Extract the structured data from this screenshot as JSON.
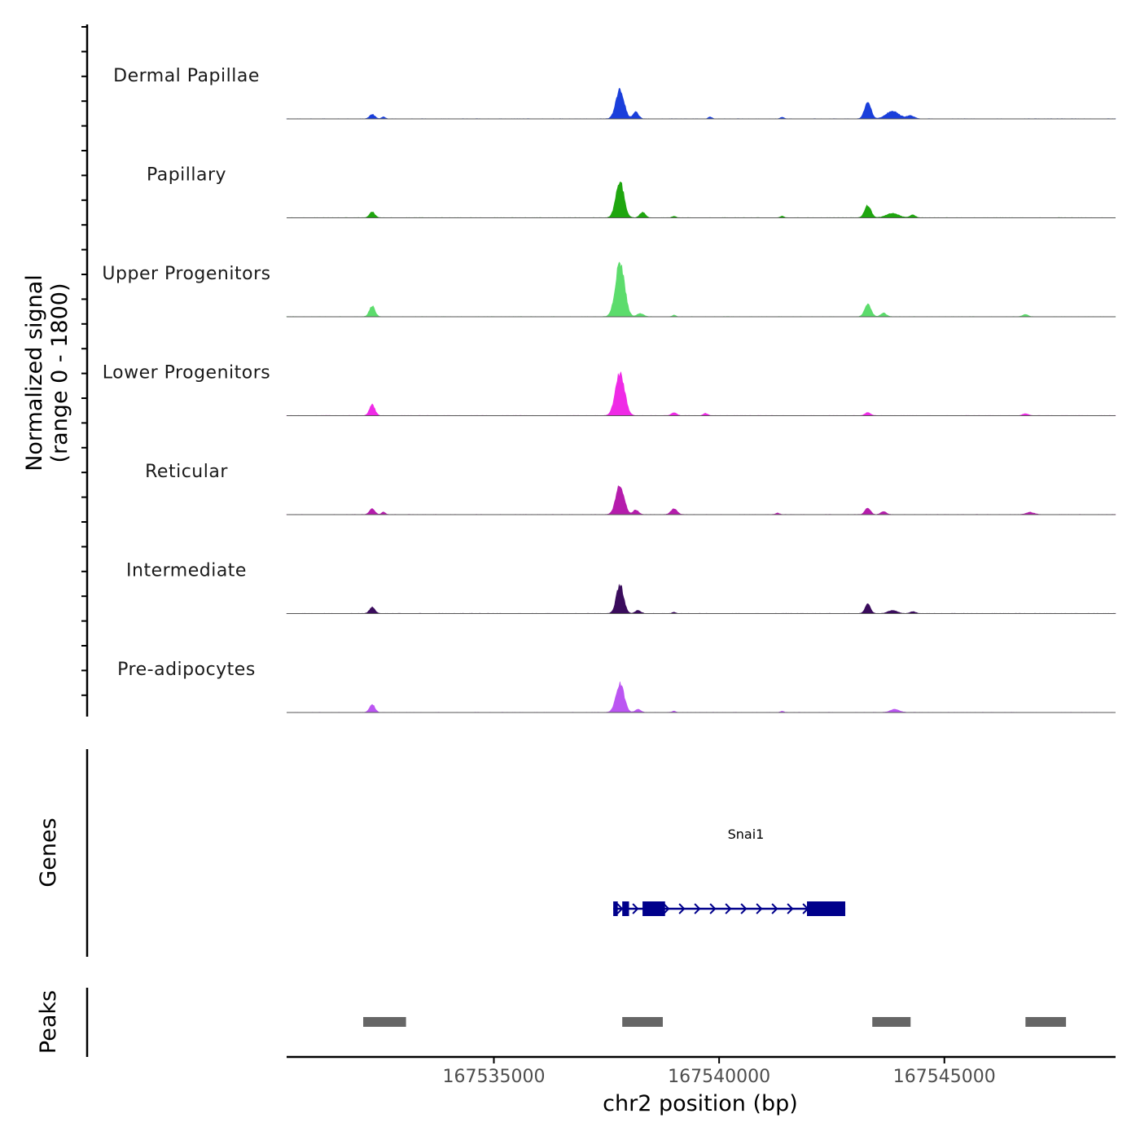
{
  "chart_data": {
    "type": "area",
    "title": "",
    "chromosome": "chr2",
    "xlabel": "chr2 position (bp)",
    "ylabel": "Normalized signal",
    "ylabel_range": "(range 0 - 1800)",
    "xlim": [
      167530400,
      167548800
    ],
    "xticks": [
      167535000,
      167540000,
      167545000
    ],
    "xtick_labels": [
      "167535000",
      "167540000",
      "167545000"
    ],
    "ylim": [
      0,
      1800
    ],
    "tracks": [
      {
        "name": "Dermal Papillae",
        "color": "#1a3fdb",
        "peaks": [
          [
            167532300,
            0.14,
            60
          ],
          [
            167532550,
            0.06,
            40
          ],
          [
            167537800,
            0.95,
            90
          ],
          [
            167538150,
            0.22,
            60
          ],
          [
            167543300,
            0.55,
            70
          ],
          [
            167543850,
            0.25,
            140
          ],
          [
            167544250,
            0.1,
            80
          ],
          [
            167539800,
            0.06,
            40
          ],
          [
            167541400,
            0.05,
            40
          ]
        ]
      },
      {
        "name": "Papillary",
        "color": "#1fa60f",
        "peaks": [
          [
            167532300,
            0.18,
            60
          ],
          [
            167537800,
            1.15,
            90
          ],
          [
            167538300,
            0.18,
            60
          ],
          [
            167543300,
            0.4,
            70
          ],
          [
            167543850,
            0.14,
            140
          ],
          [
            167544300,
            0.09,
            60
          ],
          [
            167539000,
            0.05,
            40
          ],
          [
            167541400,
            0.05,
            40
          ]
        ]
      },
      {
        "name": "Upper Progenitors",
        "color": "#5cdc6c",
        "peaks": [
          [
            167532300,
            0.35,
            60
          ],
          [
            167537800,
            1.75,
            100
          ],
          [
            167538250,
            0.1,
            70
          ],
          [
            167543300,
            0.4,
            70
          ],
          [
            167543650,
            0.12,
            60
          ],
          [
            167546800,
            0.07,
            60
          ],
          [
            167539000,
            0.05,
            40
          ]
        ]
      },
      {
        "name": "Lower Progenitors",
        "color": "#ef2ae6",
        "peaks": [
          [
            167532300,
            0.35,
            60
          ],
          [
            167537800,
            1.4,
            100
          ],
          [
            167539000,
            0.1,
            60
          ],
          [
            167539700,
            0.07,
            50
          ],
          [
            167543300,
            0.1,
            60
          ],
          [
            167546800,
            0.06,
            60
          ]
        ]
      },
      {
        "name": "Reticular",
        "color": "#b51cac",
        "peaks": [
          [
            167532300,
            0.18,
            60
          ],
          [
            167532550,
            0.08,
            40
          ],
          [
            167537800,
            0.95,
            90
          ],
          [
            167538150,
            0.15,
            60
          ],
          [
            167539000,
            0.18,
            70
          ],
          [
            167543300,
            0.22,
            60
          ],
          [
            167543650,
            0.1,
            60
          ],
          [
            167546900,
            0.07,
            90
          ],
          [
            167541300,
            0.05,
            40
          ]
        ]
      },
      {
        "name": "Intermediate",
        "color": "#3a0c5c",
        "peaks": [
          [
            167532300,
            0.2,
            60
          ],
          [
            167537800,
            0.92,
            80
          ],
          [
            167538200,
            0.1,
            60
          ],
          [
            167543300,
            0.3,
            60
          ],
          [
            167543850,
            0.1,
            100
          ],
          [
            167544300,
            0.06,
            60
          ],
          [
            167539000,
            0.04,
            40
          ]
        ]
      },
      {
        "name": "Pre-adipocytes",
        "color": "#bb55f2",
        "peaks": [
          [
            167532300,
            0.25,
            60
          ],
          [
            167537800,
            0.92,
            90
          ],
          [
            167538200,
            0.1,
            60
          ],
          [
            167543900,
            0.1,
            100
          ],
          [
            167539000,
            0.04,
            40
          ],
          [
            167541400,
            0.04,
            40
          ]
        ]
      }
    ],
    "genes": {
      "title": "Genes",
      "items": [
        {
          "name": "Snai1",
          "start": 167537650,
          "end": 167542800,
          "strand": "+",
          "color": "#00008b",
          "exons": [
            [
              167537650,
              167537750
            ],
            [
              167537850,
              167538000
            ],
            [
              167538300,
              167538800
            ],
            [
              167541950,
              167542800
            ]
          ]
        }
      ]
    },
    "peaks_track": {
      "title": "Peaks",
      "color": "#666666",
      "regions": [
        [
          167532100,
          167533050
        ],
        [
          167537850,
          167538750
        ],
        [
          167543400,
          167544250
        ],
        [
          167546800,
          167547700
        ]
      ]
    }
  }
}
